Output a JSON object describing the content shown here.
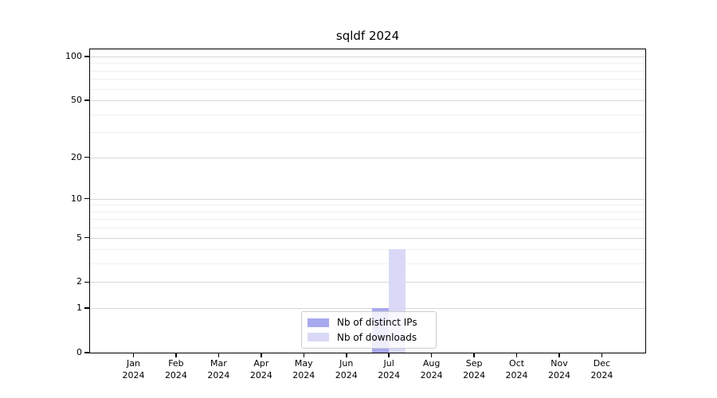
{
  "chart_data": {
    "type": "bar",
    "title": "sqldf 2024",
    "categories": [
      {
        "month": "Jan",
        "year": "2024"
      },
      {
        "month": "Feb",
        "year": "2024"
      },
      {
        "month": "Mar",
        "year": "2024"
      },
      {
        "month": "Apr",
        "year": "2024"
      },
      {
        "month": "May",
        "year": "2024"
      },
      {
        "month": "Jun",
        "year": "2024"
      },
      {
        "month": "Jul",
        "year": "2024"
      },
      {
        "month": "Aug",
        "year": "2024"
      },
      {
        "month": "Sep",
        "year": "2024"
      },
      {
        "month": "Oct",
        "year": "2024"
      },
      {
        "month": "Nov",
        "year": "2024"
      },
      {
        "month": "Dec",
        "year": "2024"
      }
    ],
    "series": [
      {
        "name": "Nb of distinct IPs",
        "color": "#a8a8ee",
        "values": [
          0,
          0,
          0,
          0,
          0,
          0,
          1,
          0,
          0,
          0,
          0,
          0
        ]
      },
      {
        "name": "Nb of downloads",
        "color": "#d9d9f7",
        "values": [
          0,
          0,
          0,
          0,
          0,
          0,
          4,
          0,
          0,
          0,
          0,
          0
        ]
      }
    ],
    "y_axis": {
      "scale": "log1p",
      "lim": [
        0,
        112
      ],
      "major_ticks": [
        0,
        1,
        2,
        5,
        10,
        20,
        50,
        100
      ],
      "minor_ticks": [
        3,
        4,
        6,
        7,
        8,
        9,
        30,
        40,
        60,
        70,
        80,
        90
      ]
    },
    "x_axis": {
      "tick_label_format": "month-over-year"
    },
    "legend": {
      "position": "lower-center"
    },
    "grid": true,
    "colors": {
      "major_grid": "#d6d6d6",
      "minor_grid": "#f0f0f0",
      "axis": "#000000",
      "background": "#ffffff"
    }
  }
}
